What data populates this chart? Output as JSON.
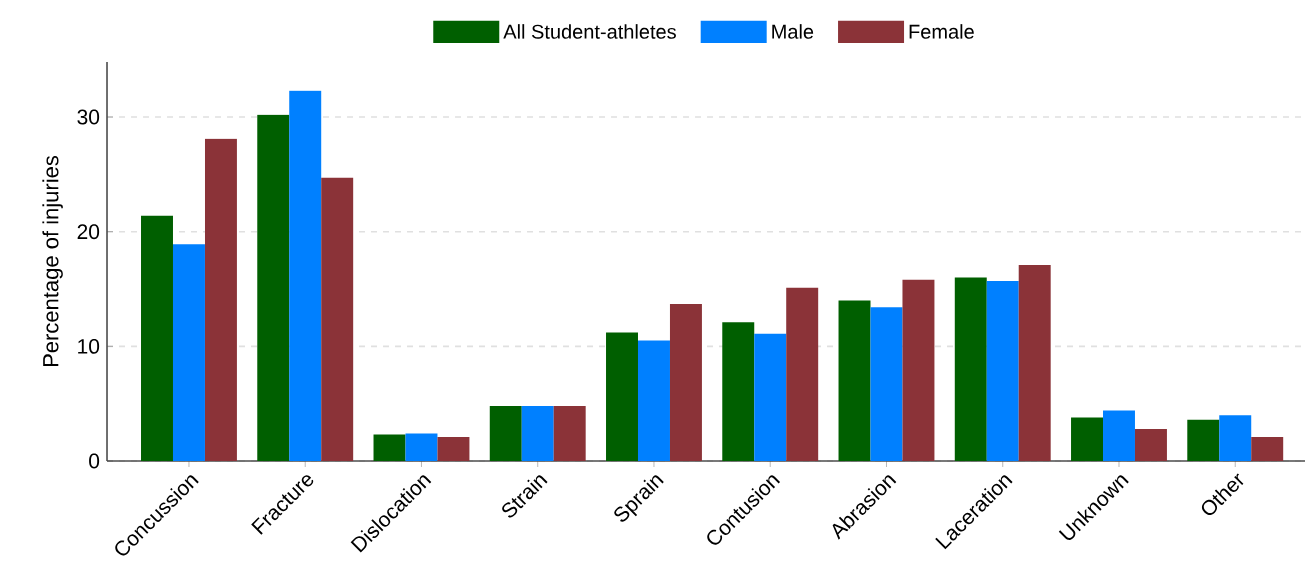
{
  "chart_data": {
    "type": "bar",
    "ylabel": "Percentage of injuries",
    "categories": [
      "Concussion",
      "Fracture",
      "Dislocation",
      "Strain",
      "Sprain",
      "Contusion",
      "Abrasion",
      "Laceration",
      "Unknown",
      "Other"
    ],
    "series": [
      {
        "name": "All Student-athletes",
        "color": "#005f00",
        "values": [
          21.4,
          30.2,
          2.3,
          4.8,
          11.2,
          12.1,
          14.0,
          16.0,
          3.8,
          3.6
        ]
      },
      {
        "name": "Male",
        "color": "#0080ff",
        "values": [
          18.9,
          32.3,
          2.4,
          4.8,
          10.5,
          11.1,
          13.4,
          15.7,
          4.4,
          4.0
        ]
      },
      {
        "name": "Female",
        "color": "#8b3338",
        "values": [
          28.1,
          24.7,
          2.1,
          4.8,
          13.7,
          15.1,
          15.8,
          17.1,
          2.8,
          2.1
        ]
      }
    ],
    "ylim": [
      0,
      34.8
    ],
    "yticks": [
      0,
      10,
      20,
      30
    ],
    "grid": "y",
    "legend": "top"
  }
}
